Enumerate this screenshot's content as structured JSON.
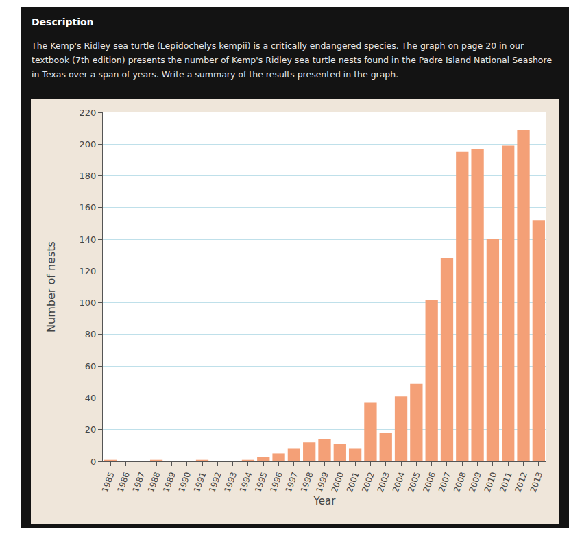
{
  "chart_data": {
    "type": "bar",
    "title": "Description",
    "subtitle": "The Kemp's Ridley sea turtle (Lepidochelys kempii) is a critically endangered species. The graph on page 20 in our textbook (7th edition) presents the number of Kemp's Ridley sea turtle nests found in the Padre Island National Seashore in Texas over a span of years. Write a summary of the results presented in the graph.",
    "x_label": "Year",
    "y_label": "Number of nests",
    "categories": [
      "1985",
      "1986",
      "1987",
      "1988",
      "1989",
      "1990",
      "1991",
      "1992",
      "1993",
      "1994",
      "1995",
      "1996",
      "1997",
      "1998",
      "1999",
      "2000",
      "2001",
      "2002",
      "2003",
      "2004",
      "2005",
      "2006",
      "2007",
      "2008",
      "2009",
      "2010",
      "2011",
      "2012",
      "2013"
    ],
    "values": [
      1,
      0,
      0,
      1,
      0,
      0,
      1,
      0,
      0,
      1,
      3,
      5,
      8,
      12,
      14,
      11,
      8,
      37,
      18,
      41,
      49,
      102,
      128,
      195,
      197,
      140,
      199,
      209,
      152
    ],
    "color": "#f4a077",
    "ylim": [
      0,
      220
    ],
    "yticks": [
      0,
      20,
      40,
      60,
      80,
      100,
      120,
      140,
      160,
      180,
      200,
      220
    ],
    "grid": true
  }
}
